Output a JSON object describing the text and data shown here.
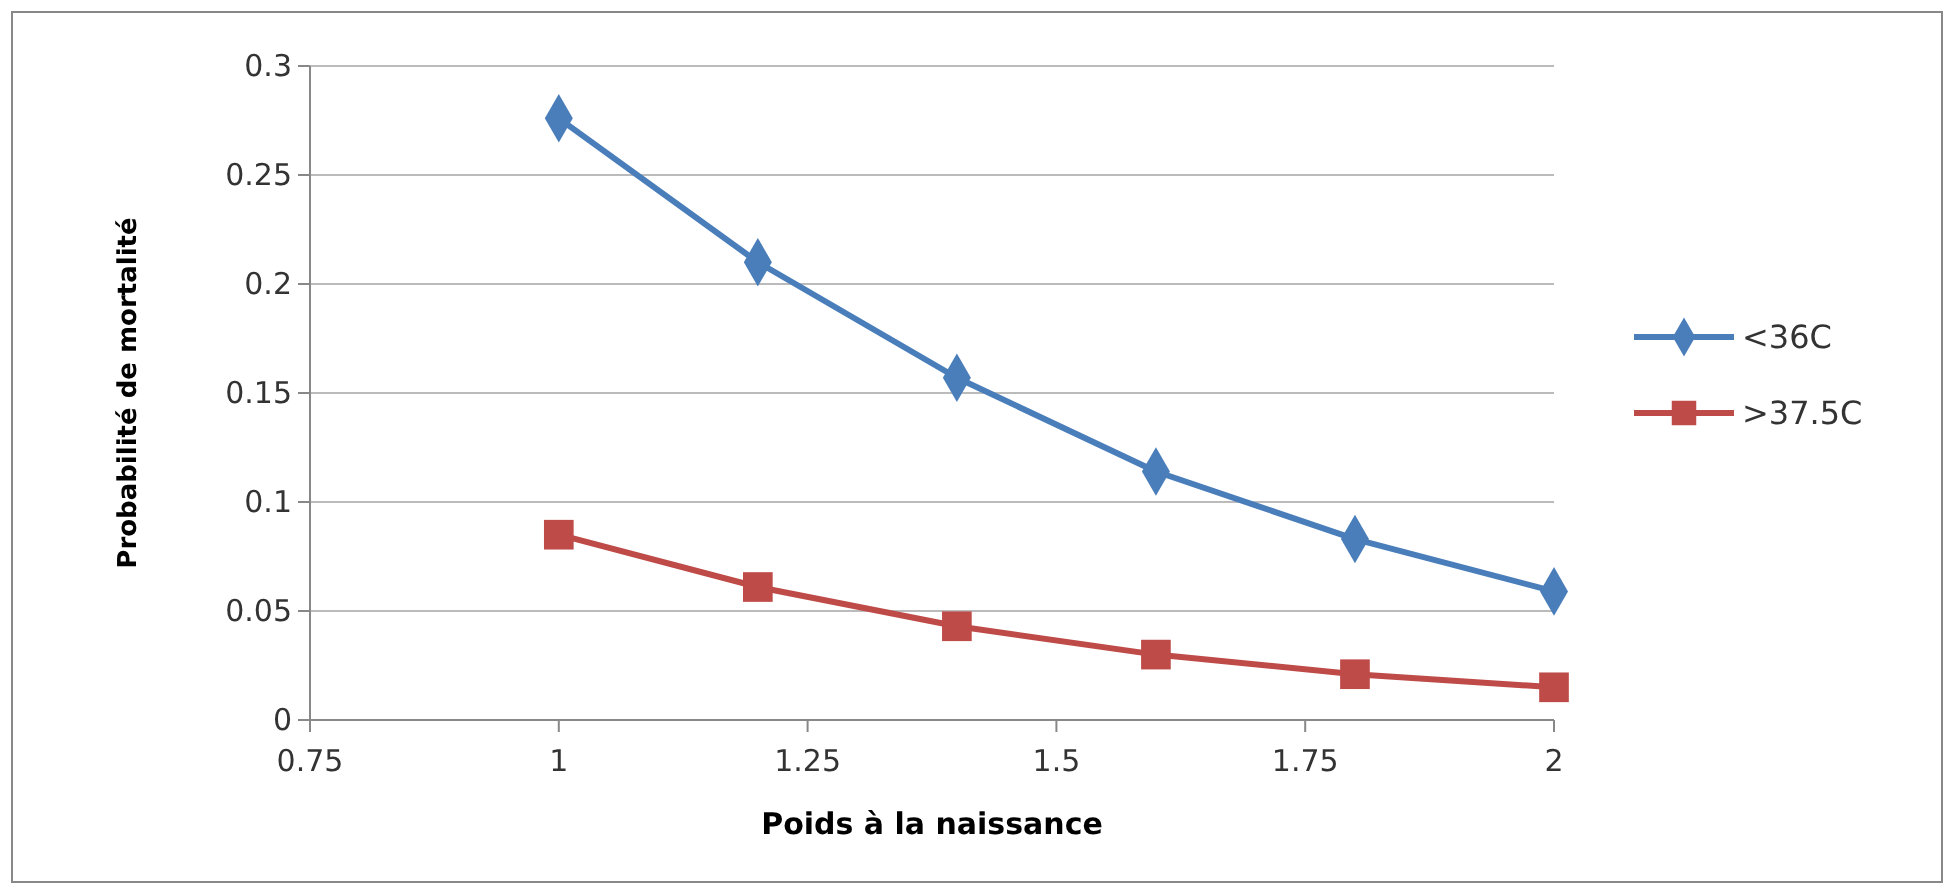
{
  "chart_data": {
    "type": "line",
    "xlabel": "Poids à la naissance",
    "ylabel": "Probabilité de mortalité",
    "x": [
      1,
      1.2,
      1.4,
      1.6,
      1.8,
      2
    ],
    "series": [
      {
        "name": "<36C",
        "color": "#4a7ebb",
        "marker": "diamond",
        "values": [
          0.276,
          0.21,
          0.157,
          0.114,
          0.083,
          0.059
        ]
      },
      {
        "name": ">37.5C",
        "color": "#be4b48",
        "marker": "square",
        "values": [
          0.085,
          0.061,
          0.043,
          0.03,
          0.021,
          0.015
        ]
      }
    ],
    "xlim": [
      0.75,
      2
    ],
    "xticks": [
      0.75,
      1,
      1.25,
      1.5,
      1.75,
      2
    ],
    "ylim": [
      0,
      0.3
    ],
    "yticks": [
      0,
      0.05,
      0.1,
      0.15,
      0.2,
      0.25,
      0.3
    ],
    "grid": "y",
    "legend": "right",
    "line_style": "solid"
  }
}
